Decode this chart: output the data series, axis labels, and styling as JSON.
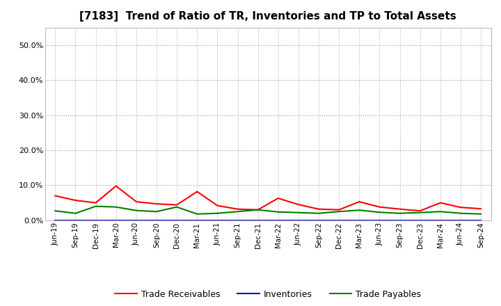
{
  "title": "[7183]  Trend of Ratio of TR, Inventories and TP to Total Assets",
  "x_labels": [
    "Jun-19",
    "Sep-19",
    "Dec-19",
    "Mar-20",
    "Jun-20",
    "Sep-20",
    "Dec-20",
    "Mar-21",
    "Jun-21",
    "Sep-21",
    "Dec-21",
    "Mar-22",
    "Jun-22",
    "Sep-22",
    "Dec-22",
    "Mar-23",
    "Jun-23",
    "Sep-23",
    "Dec-23",
    "Mar-24",
    "Jun-24",
    "Sep-24"
  ],
  "trade_receivables": [
    0.07,
    0.057,
    0.05,
    0.098,
    0.053,
    0.047,
    0.044,
    0.082,
    0.042,
    0.032,
    0.03,
    0.063,
    0.045,
    0.032,
    0.03,
    0.053,
    0.038,
    0.032,
    0.027,
    0.05,
    0.037,
    0.033
  ],
  "inventories": [
    0.0,
    0.0,
    0.0,
    0.0,
    0.0,
    0.0,
    0.0,
    0.0,
    0.0,
    0.0,
    0.0,
    0.0,
    0.0,
    0.0,
    0.0,
    0.0,
    0.0,
    0.0,
    0.0,
    0.0,
    0.0,
    0.0
  ],
  "trade_payables": [
    0.027,
    0.02,
    0.04,
    0.038,
    0.028,
    0.025,
    0.038,
    0.018,
    0.02,
    0.025,
    0.03,
    0.024,
    0.022,
    0.02,
    0.025,
    0.029,
    0.023,
    0.02,
    0.022,
    0.025,
    0.02,
    0.018
  ],
  "tr_color": "#ff0000",
  "inv_color": "#0000cd",
  "tp_color": "#008000",
  "ylim": [
    0.0,
    0.55
  ],
  "yticks": [
    0.0,
    0.1,
    0.2,
    0.3,
    0.4,
    0.5
  ],
  "background_color": "#ffffff",
  "plot_bg_color": "#ffffff",
  "grid_color": "#999999",
  "legend_labels": [
    "Trade Receivables",
    "Inventories",
    "Trade Payables"
  ],
  "title_fontsize": 11,
  "tick_fontsize": 7.5,
  "ytick_fontsize": 8
}
